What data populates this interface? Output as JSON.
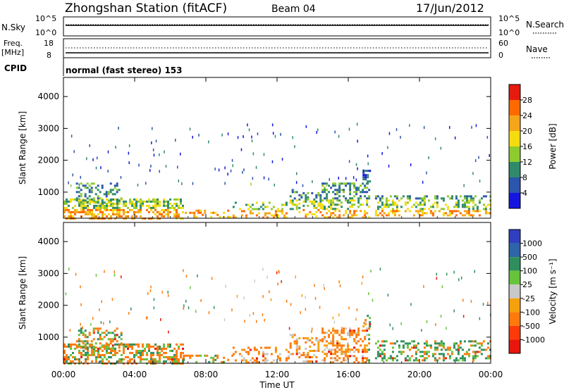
{
  "header": {
    "station": "Zhongshan Station (fitACF)",
    "beam": "Beam 04",
    "date": "17/Jun/2012"
  },
  "noise_panel": {
    "left_label": "N.Sky",
    "left_ticks": [
      "10^5",
      "10^0"
    ],
    "right_label": "N.Search",
    "right_ticks": [
      "10^5",
      "10^0"
    ]
  },
  "freq_panel": {
    "left_label_1": "Freq.",
    "left_label_2": "[MHz]",
    "left_ticks": [
      "18",
      "8"
    ],
    "right_label": "Nave",
    "right_ticks": [
      "60",
      "0"
    ]
  },
  "cpid": {
    "label": "CPID",
    "text": "normal (fast stereo) 153"
  },
  "chart_data": [
    {
      "type": "heatmap",
      "name": "power",
      "ylabel": "Slant Range [km]",
      "ylim": [
        180,
        4600
      ],
      "yticks": [
        "1000",
        "2000",
        "3000",
        "4000"
      ],
      "xlabel": "Time UT",
      "xlim_hours": [
        0,
        24
      ],
      "xticks": [
        "00:00",
        "04:00",
        "08:00",
        "12:00",
        "16:00",
        "20:00",
        "00:00"
      ],
      "colorbar": {
        "label": "Power [dB]",
        "ticks": [
          "4",
          "8",
          "12",
          "16",
          "20",
          "24",
          "28"
        ],
        "colors": [
          "#1515e0",
          "#2c55ad",
          "#2f8a6a",
          "#8ecb2e",
          "#f5dc10",
          "#f5a51a",
          "#ff6a00",
          "#e61a0f"
        ]
      }
    },
    {
      "type": "heatmap",
      "name": "velocity",
      "ylabel": "Slant Range [km]",
      "ylim": [
        180,
        4600
      ],
      "yticks": [
        "1000",
        "2000",
        "3000",
        "4000"
      ],
      "xlabel": "Time UT",
      "xlim_hours": [
        0,
        24
      ],
      "xticks": [
        "00:00",
        "04:00",
        "08:00",
        "12:00",
        "16:00",
        "20:00",
        "00:00"
      ],
      "colorbar": {
        "label": "Velocity [m s⁻¹]",
        "ticks": [
          "1000",
          "500",
          "100",
          "25",
          "-25",
          "-100",
          "-500",
          "-1000"
        ],
        "colors": [
          "#2f3fbf",
          "#2e64a8",
          "#2e8f5d",
          "#66c43a",
          "#c8c8c8",
          "#f5a10c",
          "#ff7a0a",
          "#ff3a0a",
          "#e8160c"
        ]
      }
    }
  ]
}
